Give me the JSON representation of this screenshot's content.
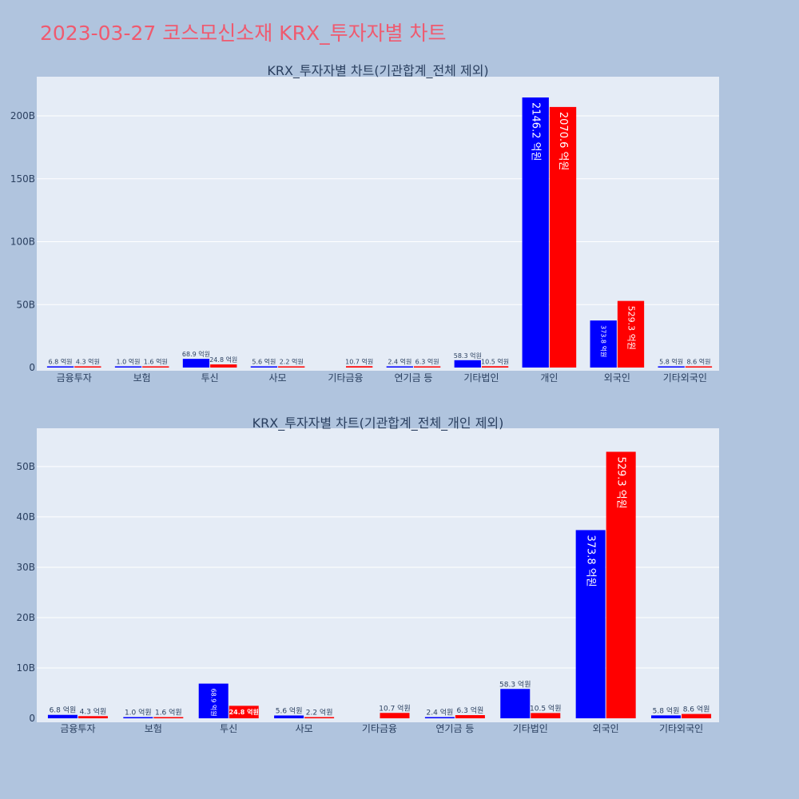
{
  "page_title": "2023-03-27 코스모신소재 KRX_투자자별 차트",
  "colors": {
    "background": "#b0c4de",
    "plot_bg": "#e5ecf6",
    "title": "#ef5a6f",
    "series_a": "#0000ff",
    "series_b": "#ff0000",
    "text": "#2a3f5f",
    "grid": "#ffffff"
  },
  "chart_data": [
    {
      "type": "bar",
      "title": "KRX_투자자별 차트(기관합계_전체 제외)",
      "categories": [
        "금융투자",
        "보험",
        "투신",
        "사모",
        "기타금융",
        "연기금 등",
        "기타법인",
        "개인",
        "외국인",
        "기타외국인"
      ],
      "yticks": [
        "0",
        "50B",
        "100B",
        "150B",
        "200B"
      ],
      "ylim": [
        0,
        223.5
      ],
      "grid": true,
      "series": [
        {
          "color": "#0000ff",
          "values": [
            0.68,
            0.1,
            6.89,
            0.56,
            0,
            0.24,
            5.83,
            214.62,
            37.38,
            0.58
          ],
          "labels": [
            "6.8 억원",
            "1.0 억원",
            "68.9 억원",
            "5.6 억원",
            "",
            "2.4 억원",
            "58.3 억원",
            "2146.2 억원",
            "373.8 억원",
            "5.8 억원"
          ]
        },
        {
          "color": "#ff0000",
          "values": [
            0.43,
            0.16,
            2.48,
            0.22,
            1.07,
            0.63,
            1.05,
            207.06,
            52.93,
            0.86
          ],
          "labels": [
            "4.3 억원",
            "1.6 억원",
            "24.8 억원",
            "2.2 억원",
            "10.7 억원",
            "6.3 억원",
            "10.5 억원",
            "2070.6 억원",
            "529.3 억원",
            "8.6 억원"
          ]
        }
      ]
    },
    {
      "type": "bar",
      "title": "KRX_투자자별 차트(기관합계_전체_개인 제외)",
      "categories": [
        "금융투자",
        "보험",
        "투신",
        "사모",
        "기타금융",
        "연기금 등",
        "기타법인",
        "외국인",
        "기타외국인"
      ],
      "yticks": [
        "0",
        "10B",
        "20B",
        "30B",
        "40B",
        "50B"
      ],
      "ylim": [
        0,
        55.7
      ],
      "grid": true,
      "series": [
        {
          "color": "#0000ff",
          "values": [
            0.68,
            0.1,
            6.89,
            0.56,
            0,
            0.24,
            5.83,
            37.38,
            0.58
          ],
          "labels": [
            "6.8 억원",
            "1.0 억원",
            "68.9 억원",
            "5.6 억원",
            "",
            "2.4 억원",
            "58.3 억원",
            "373.8 억원",
            "5.8 억원"
          ]
        },
        {
          "color": "#ff0000",
          "values": [
            0.43,
            0.16,
            2.48,
            0.22,
            1.07,
            0.63,
            1.05,
            52.93,
            0.86
          ],
          "labels": [
            "4.3 억원",
            "1.6 억원",
            "24.8 억원",
            "2.2 억원",
            "10.7 억원",
            "6.3 억원",
            "10.5 억원",
            "529.3 억원",
            "8.6 억원"
          ]
        }
      ]
    }
  ]
}
